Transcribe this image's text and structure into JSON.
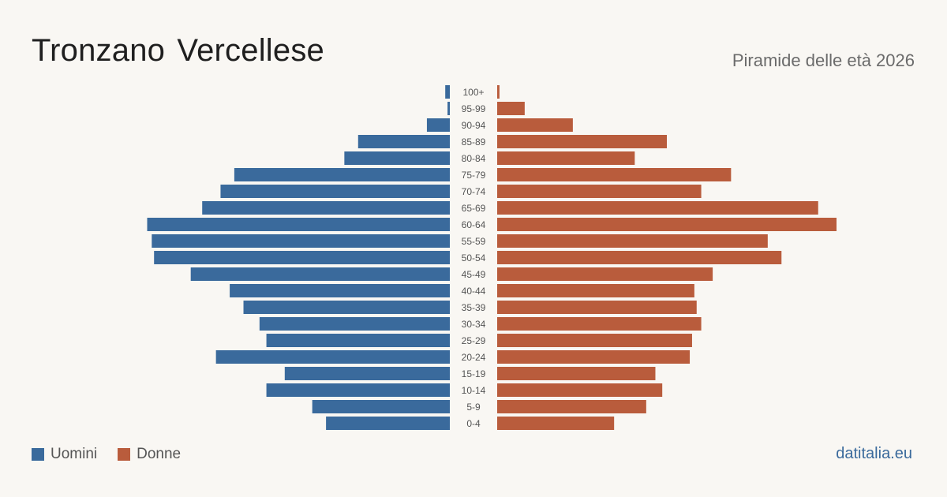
{
  "title": "Tronzano Vercellese",
  "subtitle": "Piramide delle età 2026",
  "brand": "datitalia.eu",
  "legend": [
    {
      "label": "Uomini",
      "color": "#3a6a9c"
    },
    {
      "label": "Donne",
      "color": "#b95c3c"
    }
  ],
  "chart_data": {
    "type": "bar",
    "orientation": "horizontal-pyramid",
    "categories": [
      "100+",
      "95-99",
      "90-94",
      "85-89",
      "80-84",
      "75-79",
      "70-74",
      "65-69",
      "60-64",
      "55-59",
      "50-54",
      "45-49",
      "40-44",
      "35-39",
      "30-34",
      "25-29",
      "20-24",
      "15-19",
      "10-14",
      "5-9",
      "0-4"
    ],
    "series": [
      {
        "name": "Uomini",
        "color": "#3a6a9c",
        "values": [
          1,
          0.5,
          5,
          20,
          23,
          47,
          50,
          54,
          66,
          65,
          64.5,
          56.5,
          48,
          45,
          41.5,
          40,
          51,
          36,
          40,
          30,
          27
        ]
      },
      {
        "name": "Donne",
        "color": "#b95c3c",
        "values": [
          0.5,
          6,
          16.5,
          37,
          30,
          51,
          44.5,
          70,
          74,
          59,
          62,
          47,
          43,
          43.5,
          44.5,
          42.5,
          42,
          34.5,
          36,
          32.5,
          25.5
        ]
      }
    ],
    "xlim": [
      0,
      74
    ]
  }
}
